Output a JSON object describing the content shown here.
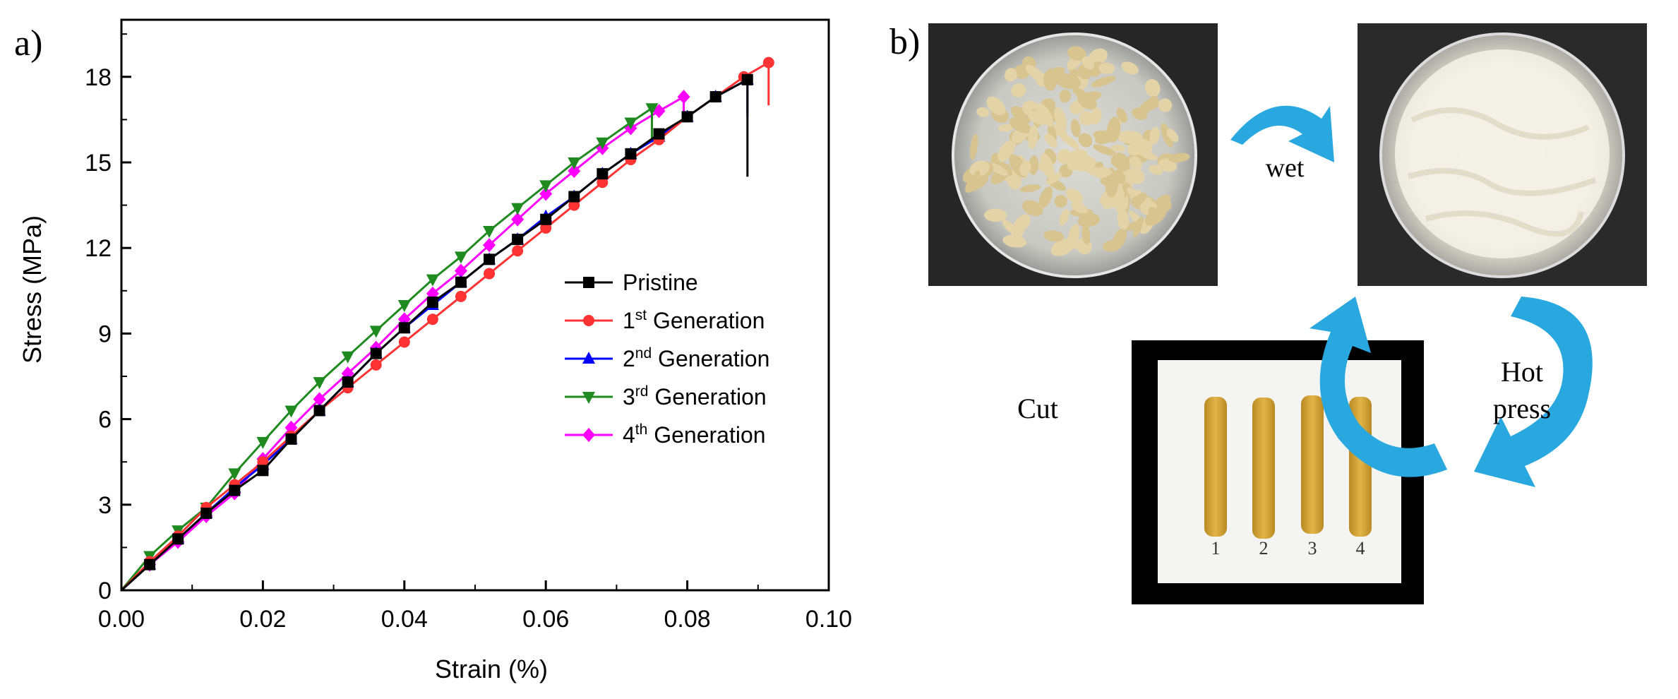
{
  "panel_a": {
    "label": "a)"
  },
  "panel_b": {
    "label": "b)",
    "steps": {
      "wet": "wet",
      "hot_press_line1": "Hot",
      "hot_press_line2": "press",
      "cut": "Cut"
    },
    "sample_numbers": [
      "1",
      "2",
      "3",
      "4"
    ]
  },
  "colors": {
    "Pristine": "#000000",
    "1st": "#ff3333",
    "2nd": "#0000ff",
    "3rd": "#1f8a1f",
    "4th": "#ff00ff",
    "arrow": "#29a8e0"
  },
  "chart_data": {
    "type": "line",
    "xlabel": "Strain (%)",
    "ylabel": "Stress (MPa)",
    "xlim": [
      0,
      0.1
    ],
    "ylim": [
      0,
      20
    ],
    "xticks": [
      "0.00",
      "0.02",
      "0.04",
      "0.06",
      "0.08",
      "0.10"
    ],
    "yticks": [
      "0",
      "3",
      "6",
      "9",
      "12",
      "15",
      "18"
    ],
    "legend_position": "center-right",
    "series": [
      {
        "key": "Pristine",
        "name": "Pristine",
        "sup": "",
        "rest": "",
        "marker": "square",
        "points": [
          [
            0,
            0
          ],
          [
            0.004,
            0.9
          ],
          [
            0.008,
            1.8
          ],
          [
            0.012,
            2.7
          ],
          [
            0.016,
            3.5
          ],
          [
            0.02,
            4.2
          ],
          [
            0.024,
            5.3
          ],
          [
            0.028,
            6.3
          ],
          [
            0.032,
            7.3
          ],
          [
            0.036,
            8.3
          ],
          [
            0.04,
            9.2
          ],
          [
            0.044,
            10.1
          ],
          [
            0.048,
            10.8
          ],
          [
            0.052,
            11.6
          ],
          [
            0.056,
            12.3
          ],
          [
            0.06,
            13.0
          ],
          [
            0.064,
            13.8
          ],
          [
            0.068,
            14.6
          ],
          [
            0.072,
            15.3
          ],
          [
            0.076,
            16.0
          ],
          [
            0.08,
            16.6
          ],
          [
            0.084,
            17.3
          ],
          [
            0.0885,
            17.9
          ],
          [
            0.0885,
            14.5
          ]
        ]
      },
      {
        "key": "1st",
        "name": "1",
        "sup": "st",
        "rest": " Generation",
        "marker": "circle",
        "points": [
          [
            0,
            0
          ],
          [
            0.004,
            1.0
          ],
          [
            0.008,
            1.9
          ],
          [
            0.012,
            2.9
          ],
          [
            0.016,
            3.7
          ],
          [
            0.02,
            4.5
          ],
          [
            0.024,
            5.4
          ],
          [
            0.028,
            6.3
          ],
          [
            0.032,
            7.1
          ],
          [
            0.036,
            7.9
          ],
          [
            0.04,
            8.7
          ],
          [
            0.044,
            9.5
          ],
          [
            0.048,
            10.3
          ],
          [
            0.052,
            11.1
          ],
          [
            0.056,
            11.9
          ],
          [
            0.06,
            12.7
          ],
          [
            0.064,
            13.5
          ],
          [
            0.068,
            14.3
          ],
          [
            0.072,
            15.1
          ],
          [
            0.076,
            15.8
          ],
          [
            0.08,
            16.6
          ],
          [
            0.084,
            17.3
          ],
          [
            0.088,
            18.0
          ],
          [
            0.0915,
            18.5
          ],
          [
            0.0915,
            17.0
          ]
        ]
      },
      {
        "key": "2nd",
        "name": "2",
        "sup": "nd",
        "rest": " Generation",
        "marker": "triangle-up",
        "points": [
          [
            0,
            0
          ],
          [
            0.004,
            0.9
          ],
          [
            0.008,
            1.8
          ],
          [
            0.012,
            2.7
          ],
          [
            0.016,
            3.6
          ],
          [
            0.02,
            4.4
          ],
          [
            0.024,
            5.3
          ],
          [
            0.028,
            6.3
          ],
          [
            0.032,
            7.3
          ],
          [
            0.036,
            8.3
          ],
          [
            0.04,
            9.2
          ],
          [
            0.044,
            10.0
          ],
          [
            0.048,
            10.8
          ],
          [
            0.052,
            11.6
          ],
          [
            0.056,
            12.3
          ],
          [
            0.06,
            13.1
          ],
          [
            0.064,
            13.8
          ],
          [
            0.068,
            14.6
          ],
          [
            0.072,
            15.3
          ],
          [
            0.076,
            15.9
          ],
          [
            0.08,
            16.6
          ],
          [
            0.084,
            17.3
          ],
          [
            0.0885,
            17.9
          ],
          [
            0.0885,
            16.6
          ]
        ]
      },
      {
        "key": "3rd",
        "name": "3",
        "sup": "rd",
        "rest": " Generation",
        "marker": "triangle-down",
        "points": [
          [
            0,
            0
          ],
          [
            0.004,
            1.2
          ],
          [
            0.008,
            2.1
          ],
          [
            0.012,
            2.9
          ],
          [
            0.016,
            4.1
          ],
          [
            0.02,
            5.2
          ],
          [
            0.024,
            6.3
          ],
          [
            0.028,
            7.3
          ],
          [
            0.032,
            8.2
          ],
          [
            0.036,
            9.1
          ],
          [
            0.04,
            10.0
          ],
          [
            0.044,
            10.9
          ],
          [
            0.048,
            11.7
          ],
          [
            0.052,
            12.6
          ],
          [
            0.056,
            13.4
          ],
          [
            0.06,
            14.2
          ],
          [
            0.064,
            15.0
          ],
          [
            0.068,
            15.7
          ],
          [
            0.072,
            16.4
          ],
          [
            0.075,
            16.9
          ],
          [
            0.075,
            15.7
          ]
        ]
      },
      {
        "key": "4th",
        "name": "4",
        "sup": "th",
        "rest": " Generation",
        "marker": "diamond",
        "points": [
          [
            0,
            0
          ],
          [
            0.004,
            0.9
          ],
          [
            0.008,
            1.7
          ],
          [
            0.012,
            2.6
          ],
          [
            0.016,
            3.4
          ],
          [
            0.02,
            4.6
          ],
          [
            0.024,
            5.7
          ],
          [
            0.028,
            6.7
          ],
          [
            0.032,
            7.6
          ],
          [
            0.036,
            8.5
          ],
          [
            0.04,
            9.5
          ],
          [
            0.044,
            10.4
          ],
          [
            0.048,
            11.2
          ],
          [
            0.052,
            12.1
          ],
          [
            0.056,
            13.0
          ],
          [
            0.06,
            13.9
          ],
          [
            0.064,
            14.7
          ],
          [
            0.068,
            15.5
          ],
          [
            0.072,
            16.2
          ],
          [
            0.076,
            16.8
          ],
          [
            0.0795,
            17.3
          ],
          [
            0.0795,
            16.4
          ]
        ]
      }
    ]
  }
}
